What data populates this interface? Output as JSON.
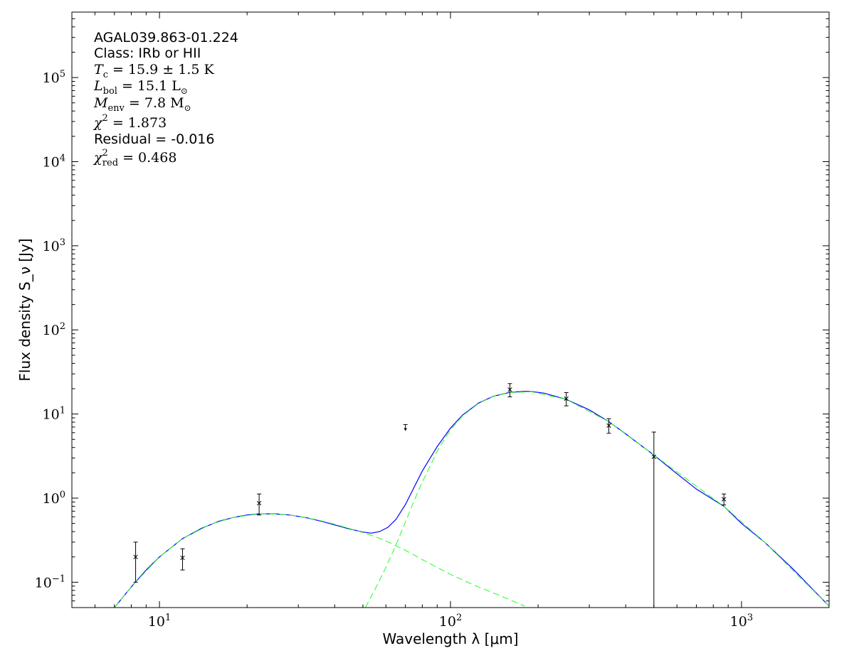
{
  "chart_data": {
    "type": "scatter",
    "title": "",
    "xlabel": "Wavelength λ [μm]",
    "ylabel": "Flux density S_ν [Jy]",
    "x_scale": "log",
    "y_scale": "log",
    "xlim": [
      5,
      2000
    ],
    "ylim": [
      0.05,
      600000
    ],
    "grid": false,
    "x_tick_labels": [
      {
        "value": 10,
        "base": "10",
        "exp": "1"
      },
      {
        "value": 100,
        "base": "10",
        "exp": "2"
      },
      {
        "value": 1000,
        "base": "10",
        "exp": "3"
      }
    ],
    "y_tick_labels": [
      {
        "value": 0.1,
        "base": "10",
        "exp": "−1"
      },
      {
        "value": 1,
        "base": "10",
        "exp": "0"
      },
      {
        "value": 10,
        "base": "10",
        "exp": "1"
      },
      {
        "value": 100,
        "base": "10",
        "exp": "2"
      },
      {
        "value": 1000,
        "base": "10",
        "exp": "3"
      },
      {
        "value": 10000,
        "base": "10",
        "exp": "4"
      },
      {
        "value": 100000,
        "base": "10",
        "exp": "5"
      }
    ],
    "annotations": [
      {
        "key": "source",
        "text": "AGAL039.863-01.224"
      },
      {
        "key": "class",
        "text": "Class: IRb or HII"
      },
      {
        "key": "tc",
        "sym": "T",
        "sub": "c",
        "value": " = 15.9 ± 1.5 K"
      },
      {
        "key": "lbol",
        "sym": "L",
        "sub": "bol",
        "value": " = 15.1 L",
        "unit_sub": "⊙"
      },
      {
        "key": "menv",
        "sym": "M",
        "sub": "env",
        "value": " = 7.8 M",
        "unit_sub": "⊙"
      },
      {
        "key": "chi2",
        "sym": "χ",
        "sup": "2",
        "value": " = 1.873"
      },
      {
        "key": "residual",
        "text": "Residual = -0.016"
      },
      {
        "key": "chi2red",
        "sym": "χ",
        "sup": "2",
        "sub": "red",
        "value": " = 0.468"
      }
    ],
    "points": [
      {
        "x": 8.28,
        "y": 0.2,
        "err_lo": 0.1,
        "err_hi": 0.3
      },
      {
        "x": 12.0,
        "y": 0.195,
        "err_lo": 0.14,
        "err_hi": 0.25
      },
      {
        "x": 22.0,
        "y": 0.87,
        "err_lo": 0.63,
        "err_hi": 1.12
      },
      {
        "x": 160,
        "y": 19.5,
        "err_lo": 16.0,
        "err_hi": 23.0
      },
      {
        "x": 250,
        "y": 15.2,
        "err_lo": 12.5,
        "err_hi": 18.0
      },
      {
        "x": 350,
        "y": 7.3,
        "err_lo": 5.9,
        "err_hi": 8.8
      },
      {
        "x": 500,
        "y": 3.1,
        "err_lo": 0.05,
        "err_hi": 6.1
      },
      {
        "x": 870,
        "y": 0.97,
        "err_lo": 0.83,
        "err_hi": 1.12
      }
    ],
    "upper_limits": [
      {
        "x": 70,
        "y_top": 7.5,
        "y_bottom": 6.4
      }
    ],
    "series": [
      {
        "style": "solid",
        "color": "#0000ff",
        "x": [
          7.0,
          8.0,
          9.0,
          10.0,
          11.0,
          12.0,
          14.0,
          16.0,
          18.0,
          20.0,
          22.0,
          25.0,
          28.0,
          32.0,
          36.0,
          40.0,
          45.0,
          50.0,
          53.5,
          57.0,
          61.0,
          65.0,
          70.0,
          75.0,
          80.0,
          90.0,
          100.0,
          110.0,
          125.0,
          140.0,
          160.0,
          180.0,
          190.0,
          210.0,
          250.0,
          300.0,
          350.0,
          400.0,
          500.0,
          600.0,
          700.0,
          870.0,
          1000.0,
          1200.0,
          1500.0,
          2000.0
        ],
        "y": [
          0.05,
          0.088,
          0.14,
          0.2,
          0.26,
          0.33,
          0.44,
          0.53,
          0.59,
          0.63,
          0.65,
          0.65,
          0.63,
          0.585,
          0.53,
          0.48,
          0.43,
          0.395,
          0.383,
          0.4,
          0.45,
          0.56,
          0.84,
          1.35,
          2.1,
          4.1,
          6.8,
          9.7,
          13.5,
          16.2,
          18.1,
          18.6,
          18.5,
          17.7,
          14.9,
          11.2,
          8.1,
          5.8,
          3.25,
          1.95,
          1.28,
          0.8,
          0.5,
          0.3,
          0.145,
          0.052
        ]
      },
      {
        "style": "dashed",
        "color": "#33ff33",
        "x": [
          7.0,
          8.0,
          10.0,
          12.0,
          15.0,
          18.0,
          22.0,
          26.0,
          30.0,
          35.0,
          40.0,
          45.0,
          50.0,
          55.0,
          60.0,
          70.0,
          80.0,
          100.0,
          120.0,
          150.0,
          180.0
        ],
        "y": [
          0.05,
          0.088,
          0.2,
          0.33,
          0.49,
          0.59,
          0.65,
          0.645,
          0.61,
          0.55,
          0.49,
          0.435,
          0.39,
          0.35,
          0.31,
          0.24,
          0.186,
          0.124,
          0.093,
          0.068,
          0.052
        ]
      },
      {
        "style": "dashed",
        "color": "#33ff33",
        "x": [
          51.0,
          55.0,
          60.0,
          65.0,
          70.0,
          75.0,
          80.0,
          90.0,
          100.0,
          110.0,
          125.0,
          140.0,
          160.0,
          190.0,
          250.0,
          350.0,
          500.0,
          870.0,
          1200.0,
          2000.0
        ],
        "y": [
          0.05,
          0.082,
          0.15,
          0.28,
          0.52,
          0.93,
          1.55,
          3.6,
          6.5,
          9.5,
          13.4,
          16.1,
          18.0,
          18.4,
          14.9,
          8.1,
          3.25,
          0.8,
          0.3,
          0.052
        ]
      }
    ]
  }
}
